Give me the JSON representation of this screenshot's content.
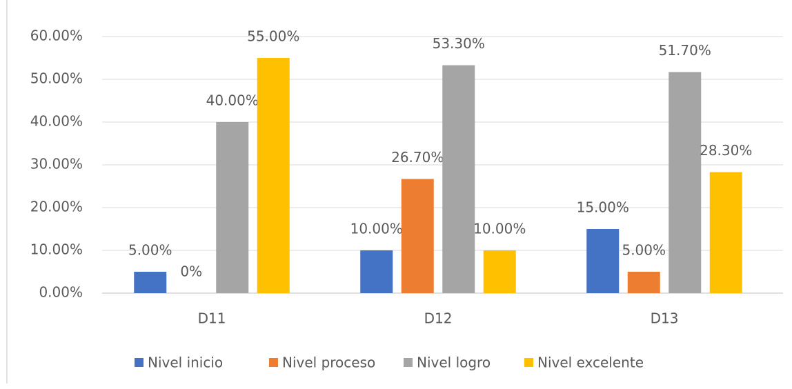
{
  "chart_data": {
    "type": "bar",
    "categories": [
      "D11",
      "D12",
      "D13"
    ],
    "series": [
      {
        "name": "Nivel inicio",
        "color": "#4472c4",
        "values": [
          5,
          10,
          15
        ],
        "value_labels": [
          "5.00%",
          "10.00%",
          "15.00%"
        ]
      },
      {
        "name": "Nivel proceso",
        "color": "#ed7d31",
        "values": [
          0,
          26.7,
          5
        ],
        "value_labels": [
          "0%",
          "26.70%",
          "5.00%"
        ]
      },
      {
        "name": "Nivel logro",
        "color": "#a5a5a5",
        "values": [
          40,
          53.3,
          51.7
        ],
        "value_labels": [
          "40.00%",
          "53.30%",
          "51.70%"
        ]
      },
      {
        "name": "Nivel excelente",
        "color": "#ffc000",
        "values": [
          55,
          10,
          28.3
        ],
        "value_labels": [
          "55.00%",
          "10.00%",
          "28.30%"
        ]
      }
    ],
    "ylim": [
      0,
      60
    ],
    "yticks": [
      {
        "value": 0,
        "label": "0.00%"
      },
      {
        "value": 10,
        "label": "10.00%"
      },
      {
        "value": 20,
        "label": "20.00%"
      },
      {
        "value": 30,
        "label": "30.00%"
      },
      {
        "value": 40,
        "label": "40.00%"
      },
      {
        "value": 50,
        "label": "50.00%"
      },
      {
        "value": 60,
        "label": "60.00%"
      }
    ],
    "grid": true,
    "legend": "bottom"
  }
}
